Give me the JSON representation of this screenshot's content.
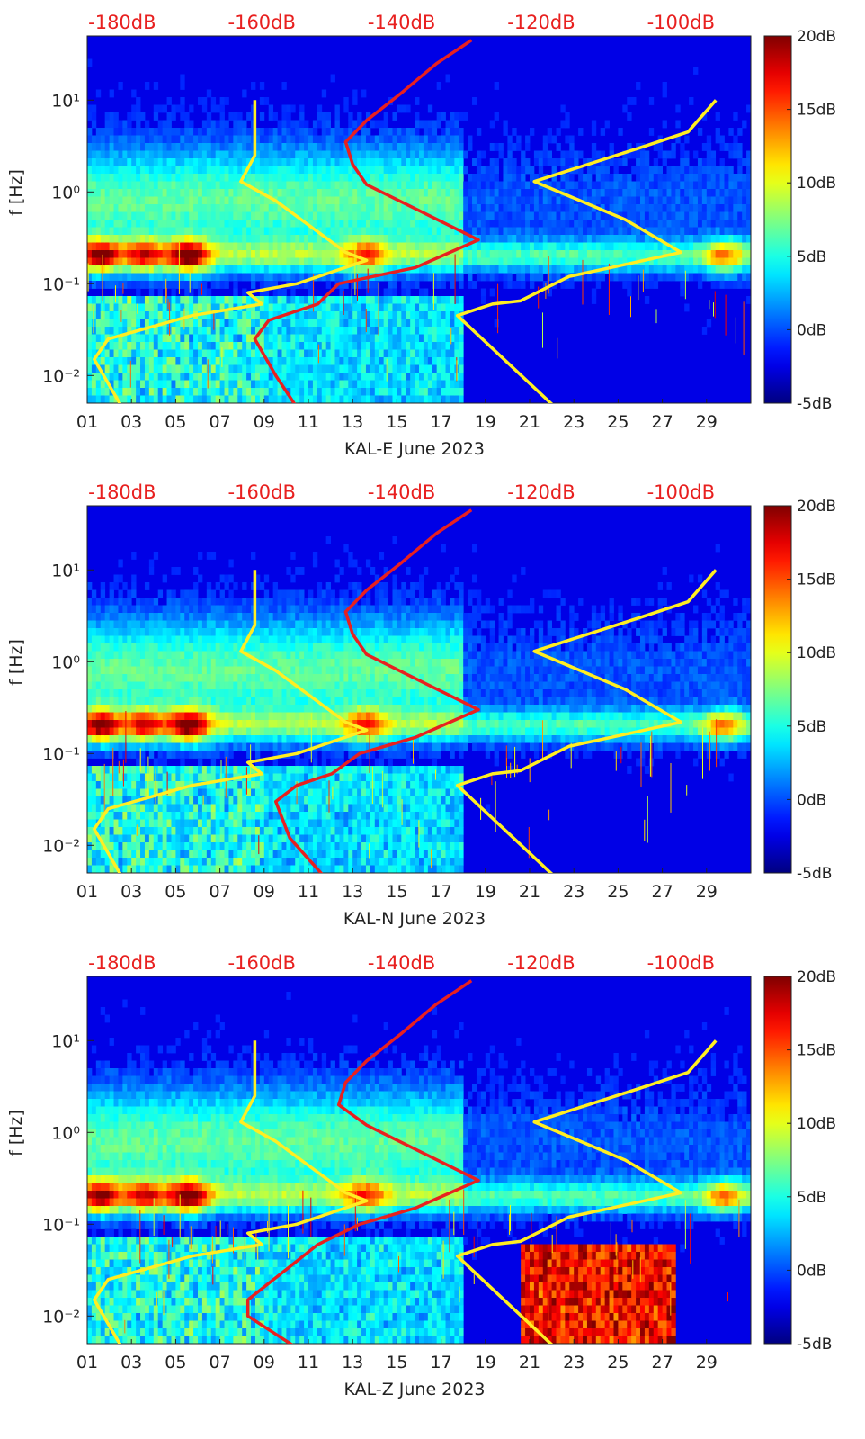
{
  "chart_data": [
    {
      "type": "heatmap",
      "station": "KAL-E",
      "xlabel": "KAL-E June 2023",
      "ylabel": "f [Hz]",
      "x_ticks": [
        "01",
        "03",
        "05",
        "07",
        "09",
        "11",
        "13",
        "15",
        "17",
        "19",
        "21",
        "23",
        "25",
        "27",
        "29"
      ],
      "y_ticks": [
        {
          "v": 0.01,
          "label": "10^-2"
        },
        {
          "v": 0.1,
          "label": "10^-1"
        },
        {
          "v": 1,
          "label": "10^0"
        },
        {
          "v": 10,
          "label": "10^1"
        }
      ],
      "ylim": [
        0.005,
        50
      ],
      "y_scale": "log",
      "top_labels": [
        "-180dB",
        "-160dB",
        "-140dB",
        "-120dB",
        "-100dB"
      ],
      "colorbar": {
        "ticks": [
          "20dB",
          "15dB",
          "10dB",
          "5dB",
          "0dB",
          "-5dB"
        ],
        "range": [
          -5,
          20
        ],
        "colormap": "jet"
      },
      "secondary_axis": {
        "range": [
          -185,
          -90
        ],
        "unit": "dB"
      },
      "series": [
        {
          "color": "#ffee22",
          "points": [
            [
              -180,
              0.0045
            ],
            [
              -184,
              0.015
            ],
            [
              -182,
              0.025
            ],
            [
              -170,
              0.045
            ],
            [
              -160,
              0.06
            ],
            [
              -162,
              0.08
            ],
            [
              -155,
              0.1
            ],
            [
              -145,
              0.18
            ],
            [
              -148,
              0.22
            ],
            [
              -158,
              0.8
            ],
            [
              -163,
              1.3
            ],
            [
              -161,
              2.5
            ],
            [
              -161,
              10
            ]
          ]
        },
        {
          "color": "#ffee22",
          "points": [
            [
              -118,
              0.0045
            ],
            [
              -132,
              0.045
            ],
            [
              -127,
              0.06
            ],
            [
              -123,
              0.065
            ],
            [
              -116,
              0.12
            ],
            [
              -110,
              0.15
            ],
            [
              -100,
              0.22
            ],
            [
              -108,
              0.5
            ],
            [
              -121,
              1.3
            ],
            [
              -106,
              3.0
            ],
            [
              -99,
              4.5
            ],
            [
              -95,
              10
            ]
          ]
        },
        {
          "color": "#e8201f",
          "points": [
            [
              -155,
              0.0045
            ],
            [
              -158,
              0.01
            ],
            [
              -161,
              0.025
            ],
            [
              -159,
              0.04
            ],
            [
              -152,
              0.06
            ],
            [
              -149,
              0.1
            ],
            [
              -138,
              0.15
            ],
            [
              -129,
              0.3
            ],
            [
              -137,
              0.6
            ],
            [
              -145,
              1.2
            ],
            [
              -147,
              2
            ],
            [
              -148,
              3.5
            ],
            [
              -145,
              6
            ],
            [
              -140,
              12
            ],
            [
              -135,
              25
            ],
            [
              -130,
              45
            ]
          ]
        }
      ]
    },
    {
      "type": "heatmap",
      "station": "KAL-N",
      "xlabel": "KAL-N June 2023",
      "ylabel": "f [Hz]",
      "x_ticks": [
        "01",
        "03",
        "05",
        "07",
        "09",
        "11",
        "13",
        "15",
        "17",
        "19",
        "21",
        "23",
        "25",
        "27",
        "29"
      ],
      "y_ticks": [
        {
          "v": 0.01,
          "label": "10^-2"
        },
        {
          "v": 0.1,
          "label": "10^-1"
        },
        {
          "v": 1,
          "label": "10^0"
        },
        {
          "v": 10,
          "label": "10^1"
        }
      ],
      "ylim": [
        0.005,
        50
      ],
      "y_scale": "log",
      "top_labels": [
        "-180dB",
        "-160dB",
        "-140dB",
        "-120dB",
        "-100dB"
      ],
      "colorbar": {
        "ticks": [
          "20dB",
          "15dB",
          "10dB",
          "5dB",
          "0dB",
          "-5dB"
        ],
        "range": [
          -5,
          20
        ],
        "colormap": "jet"
      },
      "secondary_axis": {
        "range": [
          -185,
          -90
        ],
        "unit": "dB"
      },
      "series": [
        {
          "color": "#ffee22",
          "points": [
            [
              -180,
              0.0045
            ],
            [
              -184,
              0.015
            ],
            [
              -182,
              0.025
            ],
            [
              -170,
              0.045
            ],
            [
              -160,
              0.06
            ],
            [
              -162,
              0.08
            ],
            [
              -155,
              0.1
            ],
            [
              -145,
              0.18
            ],
            [
              -148,
              0.22
            ],
            [
              -158,
              0.8
            ],
            [
              -163,
              1.3
            ],
            [
              -161,
              2.5
            ],
            [
              -161,
              10
            ]
          ]
        },
        {
          "color": "#ffee22",
          "points": [
            [
              -118,
              0.0045
            ],
            [
              -132,
              0.045
            ],
            [
              -127,
              0.06
            ],
            [
              -123,
              0.065
            ],
            [
              -116,
              0.12
            ],
            [
              -110,
              0.15
            ],
            [
              -100,
              0.22
            ],
            [
              -108,
              0.5
            ],
            [
              -121,
              1.3
            ],
            [
              -106,
              3.0
            ],
            [
              -99,
              4.5
            ],
            [
              -95,
              10
            ]
          ]
        },
        {
          "color": "#e8201f",
          "points": [
            [
              -151,
              0.0045
            ],
            [
              -156,
              0.012
            ],
            [
              -158,
              0.03
            ],
            [
              -155,
              0.045
            ],
            [
              -150,
              0.06
            ],
            [
              -146,
              0.1
            ],
            [
              -138,
              0.15
            ],
            [
              -129,
              0.3
            ],
            [
              -137,
              0.6
            ],
            [
              -145,
              1.2
            ],
            [
              -147,
              2
            ],
            [
              -148,
              3.5
            ],
            [
              -145,
              6
            ],
            [
              -140,
              12
            ],
            [
              -135,
              25
            ],
            [
              -130,
              45
            ]
          ]
        }
      ]
    },
    {
      "type": "heatmap",
      "station": "KAL-Z",
      "xlabel": "KAL-Z June 2023",
      "ylabel": "f [Hz]",
      "x_ticks": [
        "01",
        "03",
        "05",
        "07",
        "09",
        "11",
        "13",
        "15",
        "17",
        "19",
        "21",
        "23",
        "25",
        "27",
        "29"
      ],
      "y_ticks": [
        {
          "v": 0.01,
          "label": "10^-2"
        },
        {
          "v": 0.1,
          "label": "10^-1"
        },
        {
          "v": 1,
          "label": "10^0"
        },
        {
          "v": 10,
          "label": "10^1"
        }
      ],
      "ylim": [
        0.005,
        50
      ],
      "y_scale": "log",
      "top_labels": [
        "-180dB",
        "-160dB",
        "-140dB",
        "-120dB",
        "-100dB"
      ],
      "colorbar": {
        "ticks": [
          "20dB",
          "15dB",
          "10dB",
          "5dB",
          "0dB",
          "-5dB"
        ],
        "range": [
          -5,
          20
        ],
        "colormap": "jet"
      },
      "secondary_axis": {
        "range": [
          -185,
          -90
        ],
        "unit": "dB"
      },
      "series": [
        {
          "color": "#ffee22",
          "points": [
            [
              -180,
              0.0045
            ],
            [
              -184,
              0.015
            ],
            [
              -182,
              0.025
            ],
            [
              -170,
              0.045
            ],
            [
              -160,
              0.06
            ],
            [
              -162,
              0.08
            ],
            [
              -155,
              0.1
            ],
            [
              -145,
              0.18
            ],
            [
              -148,
              0.22
            ],
            [
              -158,
              0.8
            ],
            [
              -163,
              1.3
            ],
            [
              -161,
              2.5
            ],
            [
              -161,
              10
            ]
          ]
        },
        {
          "color": "#ffee22",
          "points": [
            [
              -118,
              0.0045
            ],
            [
              -132,
              0.045
            ],
            [
              -127,
              0.06
            ],
            [
              -123,
              0.065
            ],
            [
              -116,
              0.12
            ],
            [
              -110,
              0.15
            ],
            [
              -100,
              0.22
            ],
            [
              -108,
              0.5
            ],
            [
              -121,
              1.3
            ],
            [
              -106,
              3.0
            ],
            [
              -99,
              4.5
            ],
            [
              -95,
              10
            ]
          ]
        },
        {
          "color": "#e8201f",
          "points": [
            [
              -155,
              0.0045
            ],
            [
              -162,
              0.01
            ],
            [
              -162,
              0.015
            ],
            [
              -157,
              0.03
            ],
            [
              -152,
              0.06
            ],
            [
              -146,
              0.1
            ],
            [
              -138,
              0.15
            ],
            [
              -129,
              0.3
            ],
            [
              -137,
              0.6
            ],
            [
              -145,
              1.2
            ],
            [
              -149,
              2
            ],
            [
              -148,
              3.5
            ],
            [
              -145,
              6
            ],
            [
              -140,
              12
            ],
            [
              -135,
              25
            ],
            [
              -130,
              45
            ]
          ]
        }
      ]
    }
  ]
}
